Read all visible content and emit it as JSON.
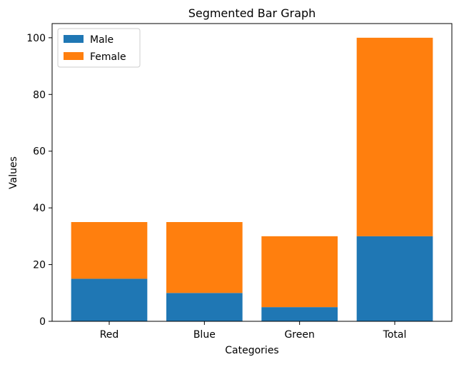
{
  "chart_data": {
    "type": "bar",
    "stacked": true,
    "title": "Segmented Bar Graph",
    "xlabel": "Categories",
    "ylabel": "Values",
    "categories": [
      "Red",
      "Blue",
      "Green",
      "Total"
    ],
    "series": [
      {
        "name": "Male",
        "values": [
          15,
          10,
          5,
          30
        ],
        "color": "#1f77b4"
      },
      {
        "name": "Female",
        "values": [
          20,
          25,
          25,
          70
        ],
        "color": "#ff7f0e"
      }
    ],
    "ylim": [
      0,
      105
    ],
    "yticks": [
      0,
      20,
      40,
      60,
      80,
      100
    ],
    "legend_position": "top-left",
    "grid": false
  }
}
